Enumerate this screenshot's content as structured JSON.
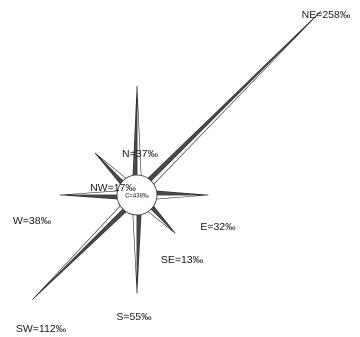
{
  "chart_data": {
    "type": "wind-rose",
    "unit": "‰",
    "center": {
      "name": "C",
      "value": 438,
      "label": "C=438‰"
    },
    "series": [
      {
        "direction": "N",
        "value": 37,
        "label": "N=37‰"
      },
      {
        "direction": "NE",
        "value": 258,
        "label": "NE=258‰"
      },
      {
        "direction": "E",
        "value": 32,
        "label": "E=32‰"
      },
      {
        "direction": "SE",
        "value": 13,
        "label": "SE=13‰"
      },
      {
        "direction": "S",
        "value": 55,
        "label": "S=55‰"
      },
      {
        "direction": "SW",
        "value": 112,
        "label": "SW=112‰"
      },
      {
        "direction": "W",
        "value": 38,
        "label": "W=38‰"
      },
      {
        "direction": "NW",
        "value": 17,
        "label": "NW=17‰"
      }
    ],
    "colors": {
      "ray_dark": "#4a4a4a",
      "ray_light": "#ffffff",
      "outline": "#2a2a2a"
    }
  }
}
